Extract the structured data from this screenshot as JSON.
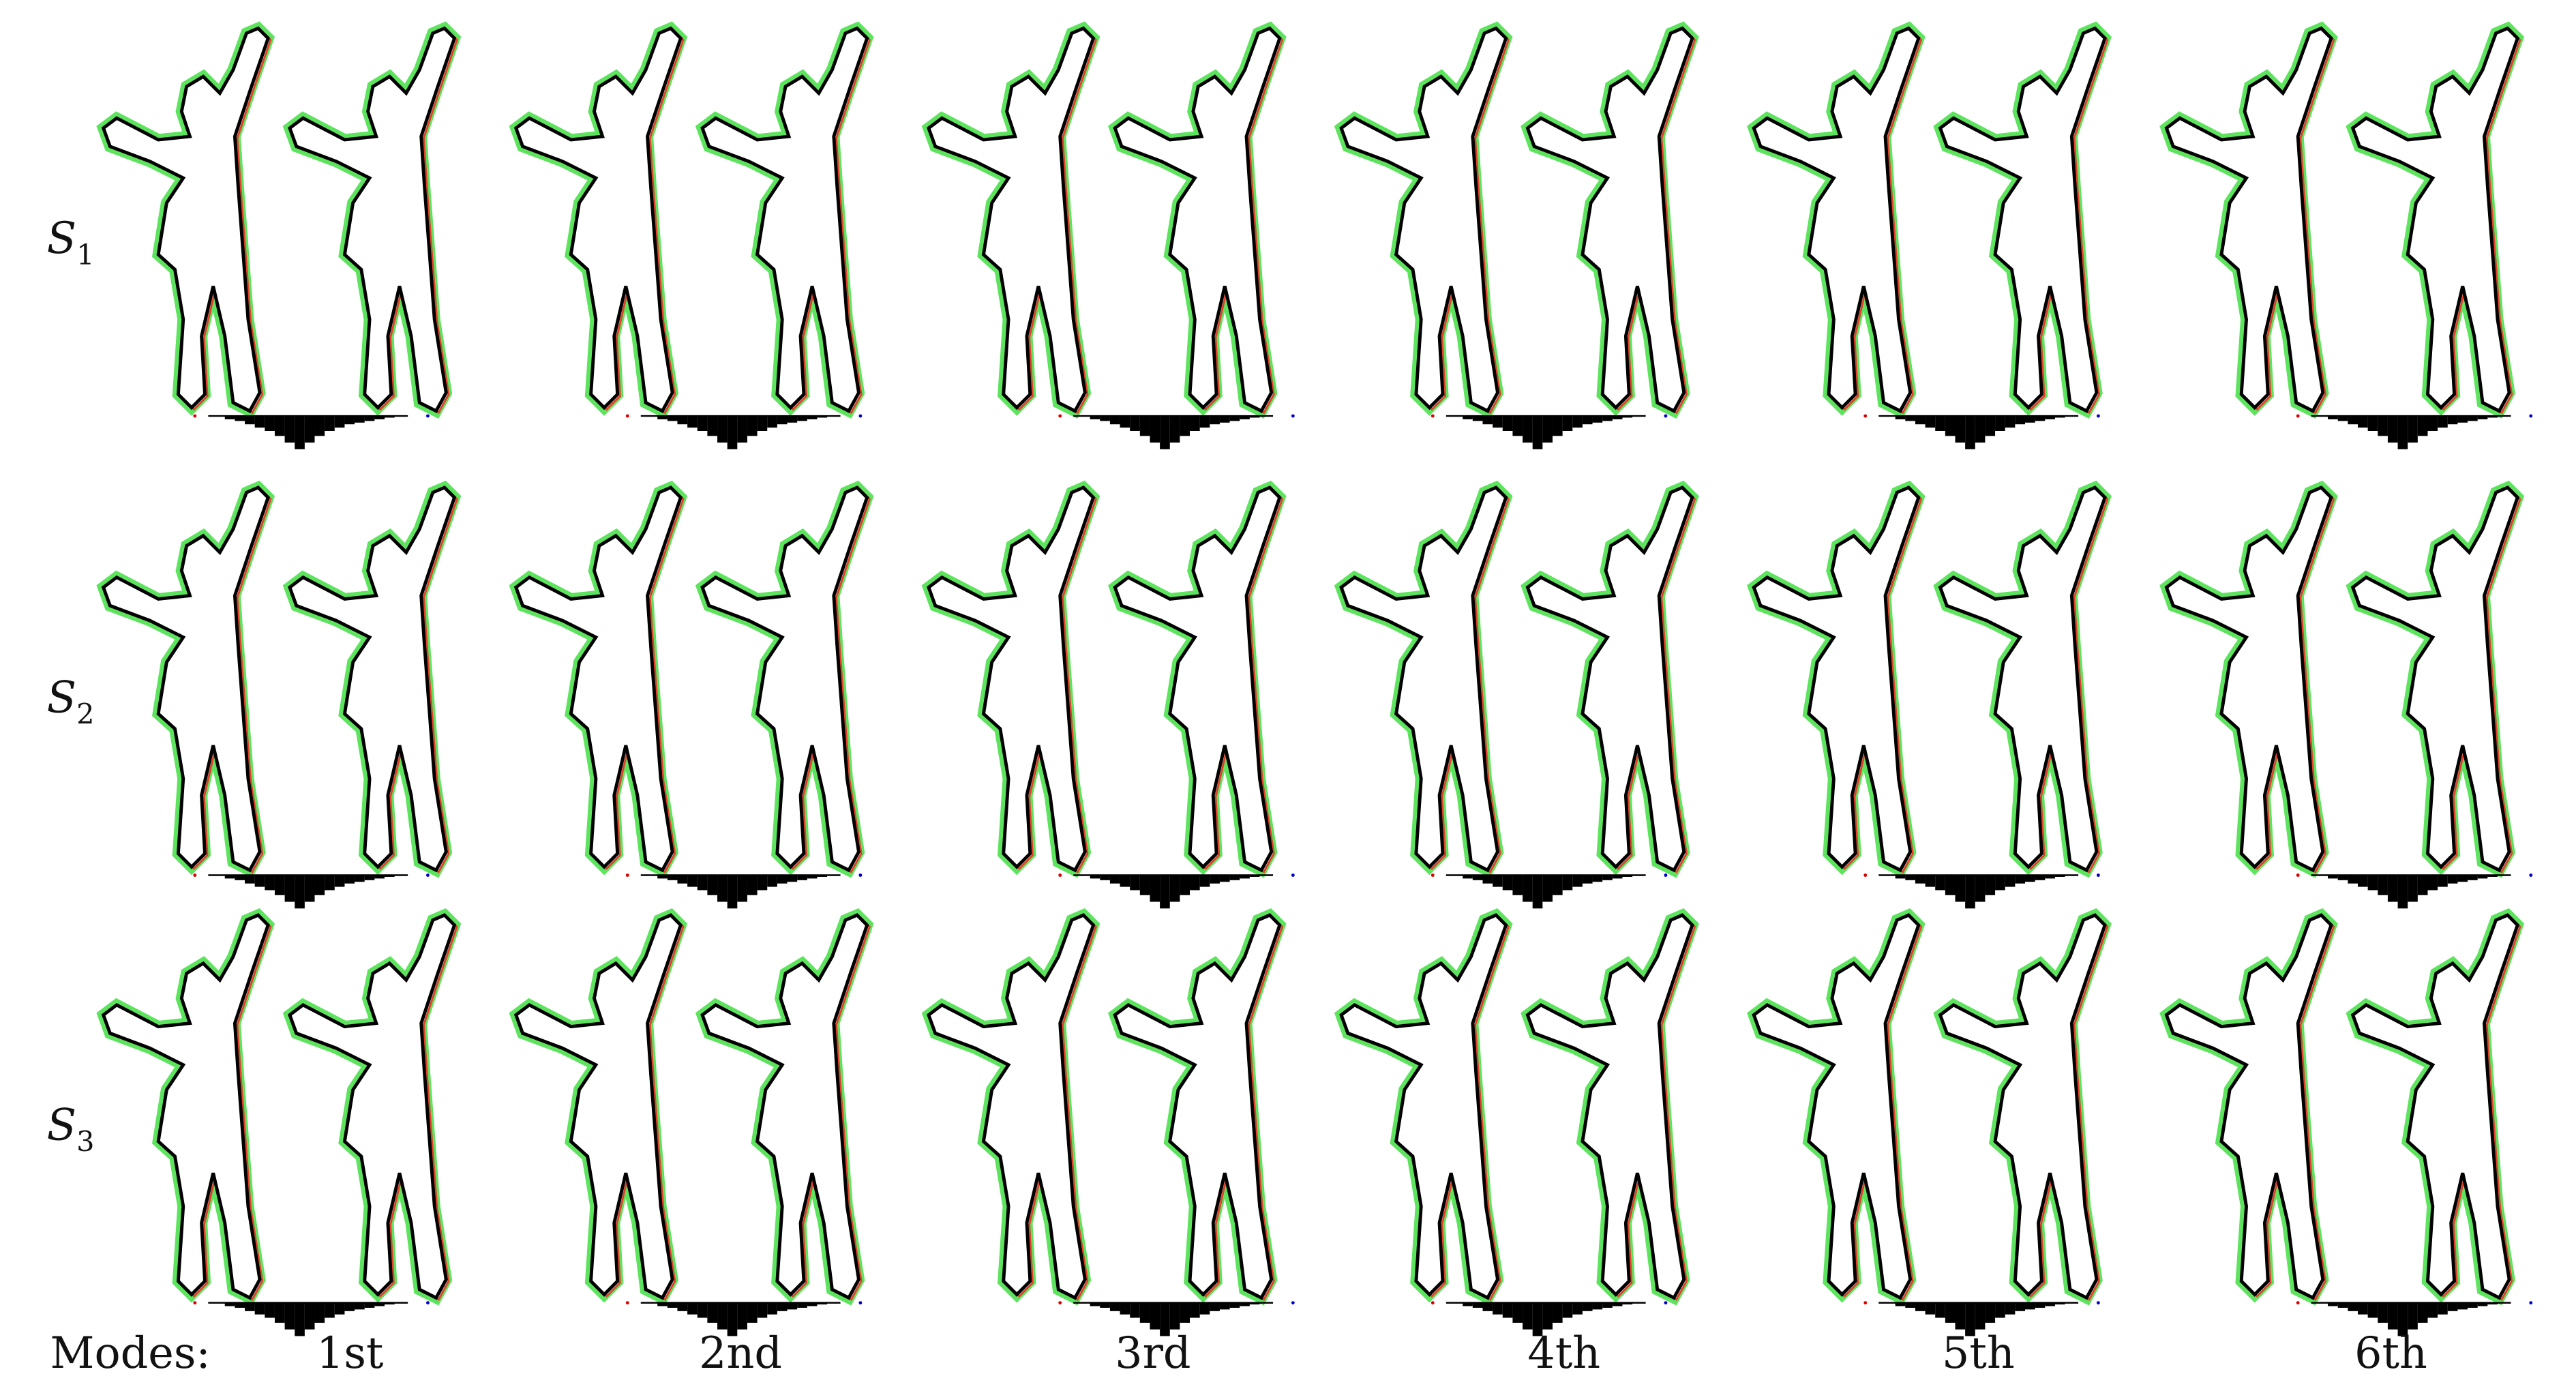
{
  "rows": [
    {
      "label": "S",
      "subscript": "1"
    },
    {
      "label": "S",
      "subscript": "2"
    },
    {
      "label": "S",
      "subscript": "3"
    }
  ],
  "modes_label": "Modes:",
  "modes": [
    "1st",
    "2nd",
    "3rd",
    "4th",
    "5th",
    "6th"
  ]
}
